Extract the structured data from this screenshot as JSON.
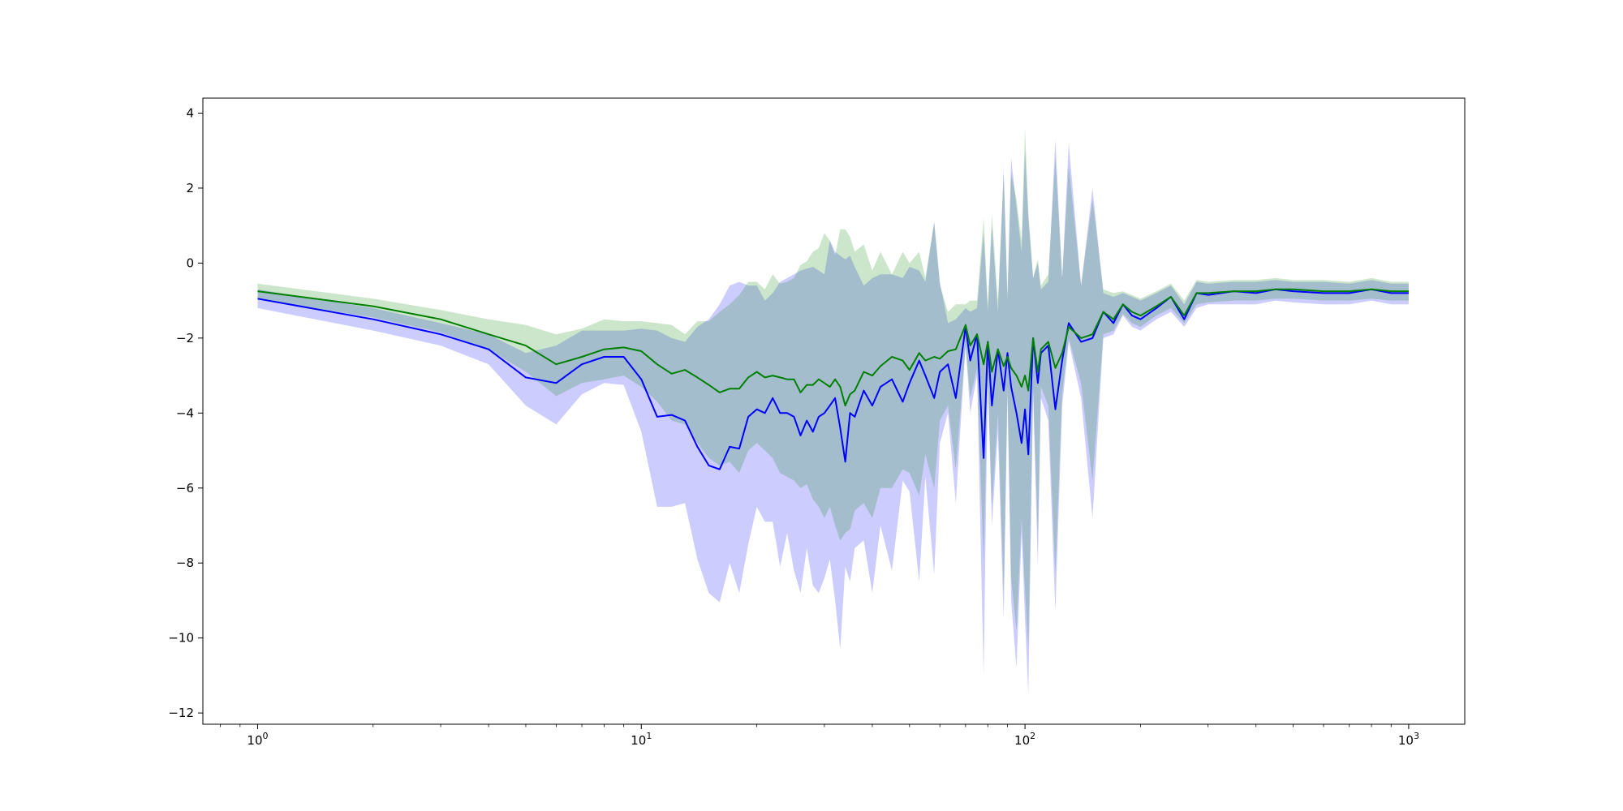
{
  "chart_data": {
    "type": "line",
    "title": "",
    "xlabel": "",
    "ylabel": "",
    "xscale": "log",
    "xlim": [
      0.72,
      1400
    ],
    "ylim": [
      -12.3,
      4.4
    ],
    "grid": false,
    "legend": "none",
    "x_ticks": [
      {
        "base": "10",
        "exp": "0",
        "value": 1
      },
      {
        "base": "10",
        "exp": "1",
        "value": 10
      },
      {
        "base": "10",
        "exp": "2",
        "value": 100
      },
      {
        "base": "10",
        "exp": "3",
        "value": 1000
      }
    ],
    "y_ticks": [
      {
        "label": "4",
        "value": 4
      },
      {
        "label": "2",
        "value": 2
      },
      {
        "label": "0",
        "value": 0
      },
      {
        "label": "−2",
        "value": -2
      },
      {
        "label": "−4",
        "value": -4
      },
      {
        "label": "−6",
        "value": -6
      },
      {
        "label": "−8",
        "value": -8
      },
      {
        "label": "−10",
        "value": -10
      },
      {
        "label": "−12",
        "value": -12
      }
    ],
    "series": [
      {
        "color": "#0000ff",
        "band_color": "#0000ff",
        "band_opacity": 0.2,
        "x": [
          1,
          2,
          3,
          4,
          5,
          6,
          7,
          8,
          9,
          10,
          11,
          12,
          13,
          14,
          15,
          16,
          17,
          18,
          19,
          20,
          21,
          22,
          23,
          24,
          25,
          26,
          27,
          28,
          29,
          30,
          31,
          32,
          33,
          34,
          35,
          36,
          38,
          40,
          42,
          45,
          48,
          50,
          53,
          55,
          58,
          60,
          63,
          66,
          70,
          72,
          75,
          78,
          80,
          82,
          85,
          88,
          90,
          92,
          95,
          98,
          100,
          102,
          105,
          108,
          110,
          115,
          120,
          125,
          130,
          140,
          150,
          160,
          170,
          180,
          190,
          200,
          220,
          240,
          260,
          280,
          300,
          350,
          400,
          450,
          500,
          600,
          700,
          800,
          900,
          1000
        ],
        "y": [
          -0.95,
          -1.5,
          -1.9,
          -2.3,
          -3.05,
          -3.2,
          -2.7,
          -2.5,
          -2.5,
          -3.1,
          -4.1,
          -4.05,
          -4.2,
          -4.9,
          -5.4,
          -5.5,
          -4.9,
          -4.95,
          -4.1,
          -3.9,
          -4.0,
          -3.6,
          -4.0,
          -4.0,
          -4.1,
          -4.6,
          -4.2,
          -4.5,
          -4.1,
          -4.0,
          -3.8,
          -3.6,
          -4.4,
          -5.3,
          -4.0,
          -4.1,
          -3.4,
          -3.8,
          -3.3,
          -3.1,
          -3.7,
          -3.2,
          -2.6,
          -3.0,
          -3.6,
          -2.9,
          -2.7,
          -3.6,
          -1.7,
          -2.6,
          -1.9,
          -5.2,
          -2.1,
          -3.8,
          -2.3,
          -3.4,
          -2.4,
          -3.3,
          -4.0,
          -4.8,
          -3.9,
          -5.1,
          -2.0,
          -3.2,
          -2.4,
          -2.2,
          -3.9,
          -2.6,
          -1.6,
          -2.1,
          -2.0,
          -1.3,
          -1.6,
          -1.1,
          -1.4,
          -1.5,
          -1.2,
          -0.9,
          -1.5,
          -0.8,
          -0.85,
          -0.75,
          -0.8,
          -0.7,
          -0.75,
          -0.8,
          -0.8,
          -0.7,
          -0.8,
          -0.8
        ],
        "lower": [
          -1.2,
          -1.8,
          -2.2,
          -2.7,
          -3.8,
          -4.3,
          -3.5,
          -3.2,
          -3.25,
          -4.5,
          -6.5,
          -6.5,
          -6.4,
          -7.9,
          -8.8,
          -9.05,
          -8.0,
          -8.8,
          -7.5,
          -6.5,
          -6.9,
          -6.9,
          -8.1,
          -7.2,
          -8.2,
          -8.8,
          -7.6,
          -8.6,
          -8.8,
          -8.4,
          -7.9,
          -9.0,
          -10.3,
          -8.1,
          -8.5,
          -7.6,
          -7.4,
          -8.8,
          -7.0,
          -8.2,
          -5.8,
          -6.1,
          -8.5,
          -5.7,
          -8.3,
          -4.8,
          -4.0,
          -6.4,
          -2.2,
          -4.0,
          -3.0,
          -11.0,
          -3.1,
          -7.0,
          -4.5,
          -9.5,
          -3.5,
          -9.0,
          -10.8,
          -7.2,
          -9.5,
          -11.5,
          -3.5,
          -8.1,
          -3.6,
          -4.2,
          -9.3,
          -3.8,
          -2.1,
          -3.6,
          -6.8,
          -2.0,
          -1.9,
          -1.4,
          -1.7,
          -1.8,
          -1.5,
          -1.3,
          -1.7,
          -1.2,
          -1.1,
          -1.1,
          -1.1,
          -1.0,
          -1.05,
          -1.1,
          -1.1,
          -1.0,
          -1.1,
          -1.1
        ],
        "upper": [
          -0.7,
          -1.2,
          -1.6,
          -1.9,
          -2.4,
          -2.2,
          -1.8,
          -1.8,
          -1.8,
          -1.75,
          -1.8,
          -2.0,
          -2.1,
          -1.7,
          -1.5,
          -1.1,
          -0.6,
          -0.5,
          -0.6,
          -0.6,
          -1.0,
          -0.8,
          -0.5,
          -0.4,
          -0.3,
          -0.2,
          -0.15,
          -0.1,
          -0.2,
          -0.3,
          0.6,
          0.3,
          0.2,
          0.1,
          0.2,
          -0.1,
          -0.6,
          -0.4,
          -0.3,
          -0.3,
          -0.4,
          -0.1,
          -0.2,
          -0.5,
          1.1,
          -0.5,
          -1.6,
          -1.5,
          -1.2,
          -1.3,
          -1.2,
          0.8,
          -1.3,
          1.0,
          -1.3,
          2.5,
          -1.0,
          2.8,
          1.5,
          0.3,
          3.0,
          1.2,
          -0.4,
          0.0,
          -0.7,
          -0.5,
          3.3,
          -0.4,
          3.2,
          -0.6,
          2.0,
          -0.8,
          -0.9,
          -0.8,
          -0.9,
          -1.0,
          -0.8,
          -0.6,
          -1.1,
          -0.5,
          -0.55,
          -0.5,
          -0.5,
          -0.45,
          -0.5,
          -0.5,
          -0.55,
          -0.45,
          -0.55,
          -0.55
        ]
      },
      {
        "color": "#008000",
        "band_color": "#008000",
        "band_opacity": 0.2,
        "x": [
          1,
          2,
          3,
          4,
          5,
          6,
          7,
          8,
          9,
          10,
          11,
          12,
          13,
          14,
          15,
          16,
          17,
          18,
          19,
          20,
          21,
          22,
          23,
          24,
          25,
          26,
          27,
          28,
          29,
          30,
          31,
          32,
          33,
          34,
          35,
          36,
          38,
          40,
          42,
          45,
          48,
          50,
          53,
          55,
          58,
          60,
          63,
          66,
          70,
          72,
          75,
          78,
          80,
          82,
          85,
          88,
          90,
          92,
          95,
          98,
          100,
          102,
          105,
          108,
          110,
          115,
          120,
          125,
          130,
          140,
          150,
          160,
          170,
          180,
          190,
          200,
          220,
          240,
          260,
          280,
          300,
          350,
          400,
          450,
          500,
          600,
          700,
          800,
          900,
          1000
        ],
        "y": [
          -0.75,
          -1.15,
          -1.5,
          -1.9,
          -2.2,
          -2.7,
          -2.5,
          -2.3,
          -2.25,
          -2.35,
          -2.7,
          -2.95,
          -2.85,
          -3.05,
          -3.25,
          -3.45,
          -3.35,
          -3.35,
          -3.05,
          -2.9,
          -3.05,
          -3.0,
          -3.05,
          -3.1,
          -3.1,
          -3.45,
          -3.25,
          -3.25,
          -3.1,
          -3.2,
          -3.3,
          -3.1,
          -3.3,
          -3.8,
          -3.5,
          -3.4,
          -2.9,
          -3.0,
          -2.75,
          -2.5,
          -2.6,
          -2.85,
          -2.4,
          -2.6,
          -2.5,
          -2.55,
          -2.35,
          -2.3,
          -1.65,
          -2.2,
          -1.9,
          -2.7,
          -2.1,
          -2.9,
          -2.3,
          -2.75,
          -2.5,
          -2.8,
          -3.0,
          -3.3,
          -3.0,
          -3.4,
          -2.0,
          -2.9,
          -2.3,
          -2.1,
          -2.8,
          -2.4,
          -1.7,
          -2.0,
          -1.9,
          -1.3,
          -1.5,
          -1.1,
          -1.3,
          -1.4,
          -1.15,
          -0.9,
          -1.4,
          -0.8,
          -0.8,
          -0.75,
          -0.75,
          -0.7,
          -0.7,
          -0.75,
          -0.75,
          -0.7,
          -0.75,
          -0.75
        ],
        "lower": [
          -0.95,
          -1.45,
          -1.85,
          -2.3,
          -2.9,
          -3.55,
          -3.2,
          -3.1,
          -3.0,
          -3.3,
          -3.7,
          -4.2,
          -4.3,
          -4.8,
          -5.2,
          -5.4,
          -5.3,
          -5.6,
          -5.0,
          -4.8,
          -5.0,
          -5.2,
          -5.6,
          -5.7,
          -5.8,
          -6.0,
          -5.9,
          -6.3,
          -6.5,
          -6.8,
          -6.5,
          -7.0,
          -7.4,
          -7.2,
          -7.1,
          -6.6,
          -6.4,
          -6.8,
          -6.0,
          -6.0,
          -5.5,
          -5.6,
          -6.2,
          -5.1,
          -6.0,
          -4.2,
          -3.8,
          -5.5,
          -2.2,
          -3.6,
          -2.8,
          -8.0,
          -3.0,
          -6.5,
          -4.0,
          -8.8,
          -3.3,
          -8.4,
          -9.8,
          -6.8,
          -8.7,
          -10.3,
          -3.3,
          -7.3,
          -3.3,
          -3.8,
          -8.3,
          -3.5,
          -2.0,
          -3.2,
          -5.8,
          -1.9,
          -1.8,
          -1.35,
          -1.6,
          -1.7,
          -1.4,
          -1.2,
          -1.6,
          -1.1,
          -1.05,
          -1.0,
          -1.0,
          -0.95,
          -0.95,
          -1.0,
          -1.0,
          -0.95,
          -1.0,
          -1.0
        ],
        "upper": [
          -0.55,
          -0.95,
          -1.25,
          -1.5,
          -1.65,
          -1.9,
          -1.75,
          -1.5,
          -1.55,
          -1.55,
          -1.6,
          -1.65,
          -1.9,
          -1.55,
          -1.55,
          -1.3,
          -1.1,
          -0.85,
          -0.5,
          -0.5,
          -0.7,
          -0.3,
          -0.55,
          -0.5,
          -0.4,
          -0.05,
          0.05,
          0.3,
          0.4,
          0.8,
          0.6,
          0.2,
          0.9,
          0.9,
          0.7,
          0.3,
          0.5,
          -0.2,
          0.3,
          -0.3,
          0.3,
          0.0,
          0.3,
          -0.4,
          1.1,
          -0.6,
          -1.3,
          -1.1,
          -1.1,
          -1.0,
          -1.0,
          1.2,
          -1.1,
          1.3,
          -1.0,
          2.4,
          -0.8,
          2.4,
          1.7,
          0.6,
          3.6,
          1.4,
          -0.4,
          0.1,
          -0.6,
          -0.3,
          2.8,
          -0.4,
          2.6,
          -0.6,
          1.7,
          -0.7,
          -0.8,
          -0.75,
          -0.85,
          -0.95,
          -0.75,
          -0.55,
          -1.0,
          -0.45,
          -0.5,
          -0.45,
          -0.45,
          -0.4,
          -0.45,
          -0.45,
          -0.5,
          -0.4,
          -0.5,
          -0.5
        ]
      }
    ]
  }
}
